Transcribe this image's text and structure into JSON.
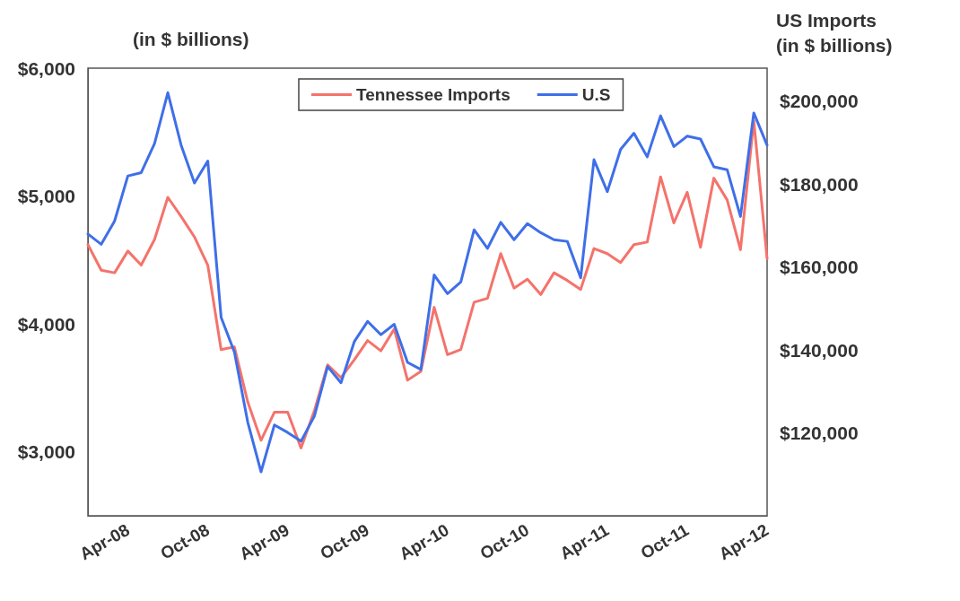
{
  "chart_data": {
    "type": "line",
    "ylabel": "(in $ billions)",
    "y2label": "US Imports\n(in $ billions)",
    "categories": [
      null,
      null,
      null,
      "Apr-08",
      null,
      null,
      null,
      null,
      null,
      "Oct-08",
      null,
      null,
      null,
      null,
      null,
      "Apr-09",
      null,
      null,
      null,
      null,
      null,
      "Oct-09",
      null,
      null,
      null,
      null,
      null,
      "Apr-10",
      null,
      null,
      null,
      null,
      null,
      "Oct-10",
      null,
      null,
      null,
      null,
      null,
      "Apr-11",
      null,
      null,
      null,
      null,
      null,
      "Oct-11",
      null,
      null,
      null,
      null,
      null,
      "Apr-12"
    ],
    "series": [
      {
        "name": "Tennessee Imports",
        "color": "#f4736b",
        "values": [
          4620,
          4420,
          4400,
          4570,
          4460,
          4660,
          4990,
          4840,
          4680,
          4460,
          3800,
          3820,
          3390,
          3090,
          3310,
          3310,
          3030,
          3320,
          3680,
          3580,
          3720,
          3870,
          3790,
          3960,
          3560,
          3630,
          4130,
          3760,
          3800,
          4170,
          4200,
          4550,
          4280,
          4350,
          4230,
          4400,
          4340,
          4270,
          4590,
          4550,
          4480,
          4620,
          4640,
          5150,
          4790,
          5030,
          4600,
          5140,
          4970,
          4580,
          5590,
          4510
        ]
      },
      {
        "name": "U.S",
        "color": "#3f6fe8",
        "axis": "y2",
        "values": [
          168000,
          165500,
          171100,
          182000,
          182800,
          189800,
          202100,
          189400,
          180300,
          185600,
          147900,
          139500,
          122600,
          110600,
          121900,
          120100,
          118000,
          124000,
          136000,
          132100,
          142000,
          146900,
          143700,
          146200,
          137000,
          135300,
          158100,
          153600,
          156400,
          169000,
          164500,
          170800,
          166600,
          170500,
          168300,
          166600,
          166200,
          157400,
          185900,
          178200,
          188400,
          192300,
          186600,
          196500,
          189100,
          191600,
          190900,
          184200,
          183500,
          172200,
          197200,
          189400
        ]
      }
    ],
    "ylim": [
      2500,
      6000
    ],
    "yticks": [
      {
        "value": 3000,
        "label": "$3,000"
      },
      {
        "value": 4000,
        "label": "$4,000"
      },
      {
        "value": 5000,
        "label": "$5,000"
      },
      {
        "value": 6000,
        "label": "$6,000"
      }
    ],
    "y2lim": [
      100000,
      208000
    ],
    "y2ticks": [
      {
        "value": 120000,
        "label": "$120,000"
      },
      {
        "value": 140000,
        "label": "$140,000"
      },
      {
        "value": 160000,
        "label": "$160,000"
      },
      {
        "value": 180000,
        "label": "$180,000"
      },
      {
        "value": 200000,
        "label": "$200,000"
      }
    ],
    "grid": false,
    "legend": "top",
    "marker": "none",
    "line_style": "solid"
  }
}
